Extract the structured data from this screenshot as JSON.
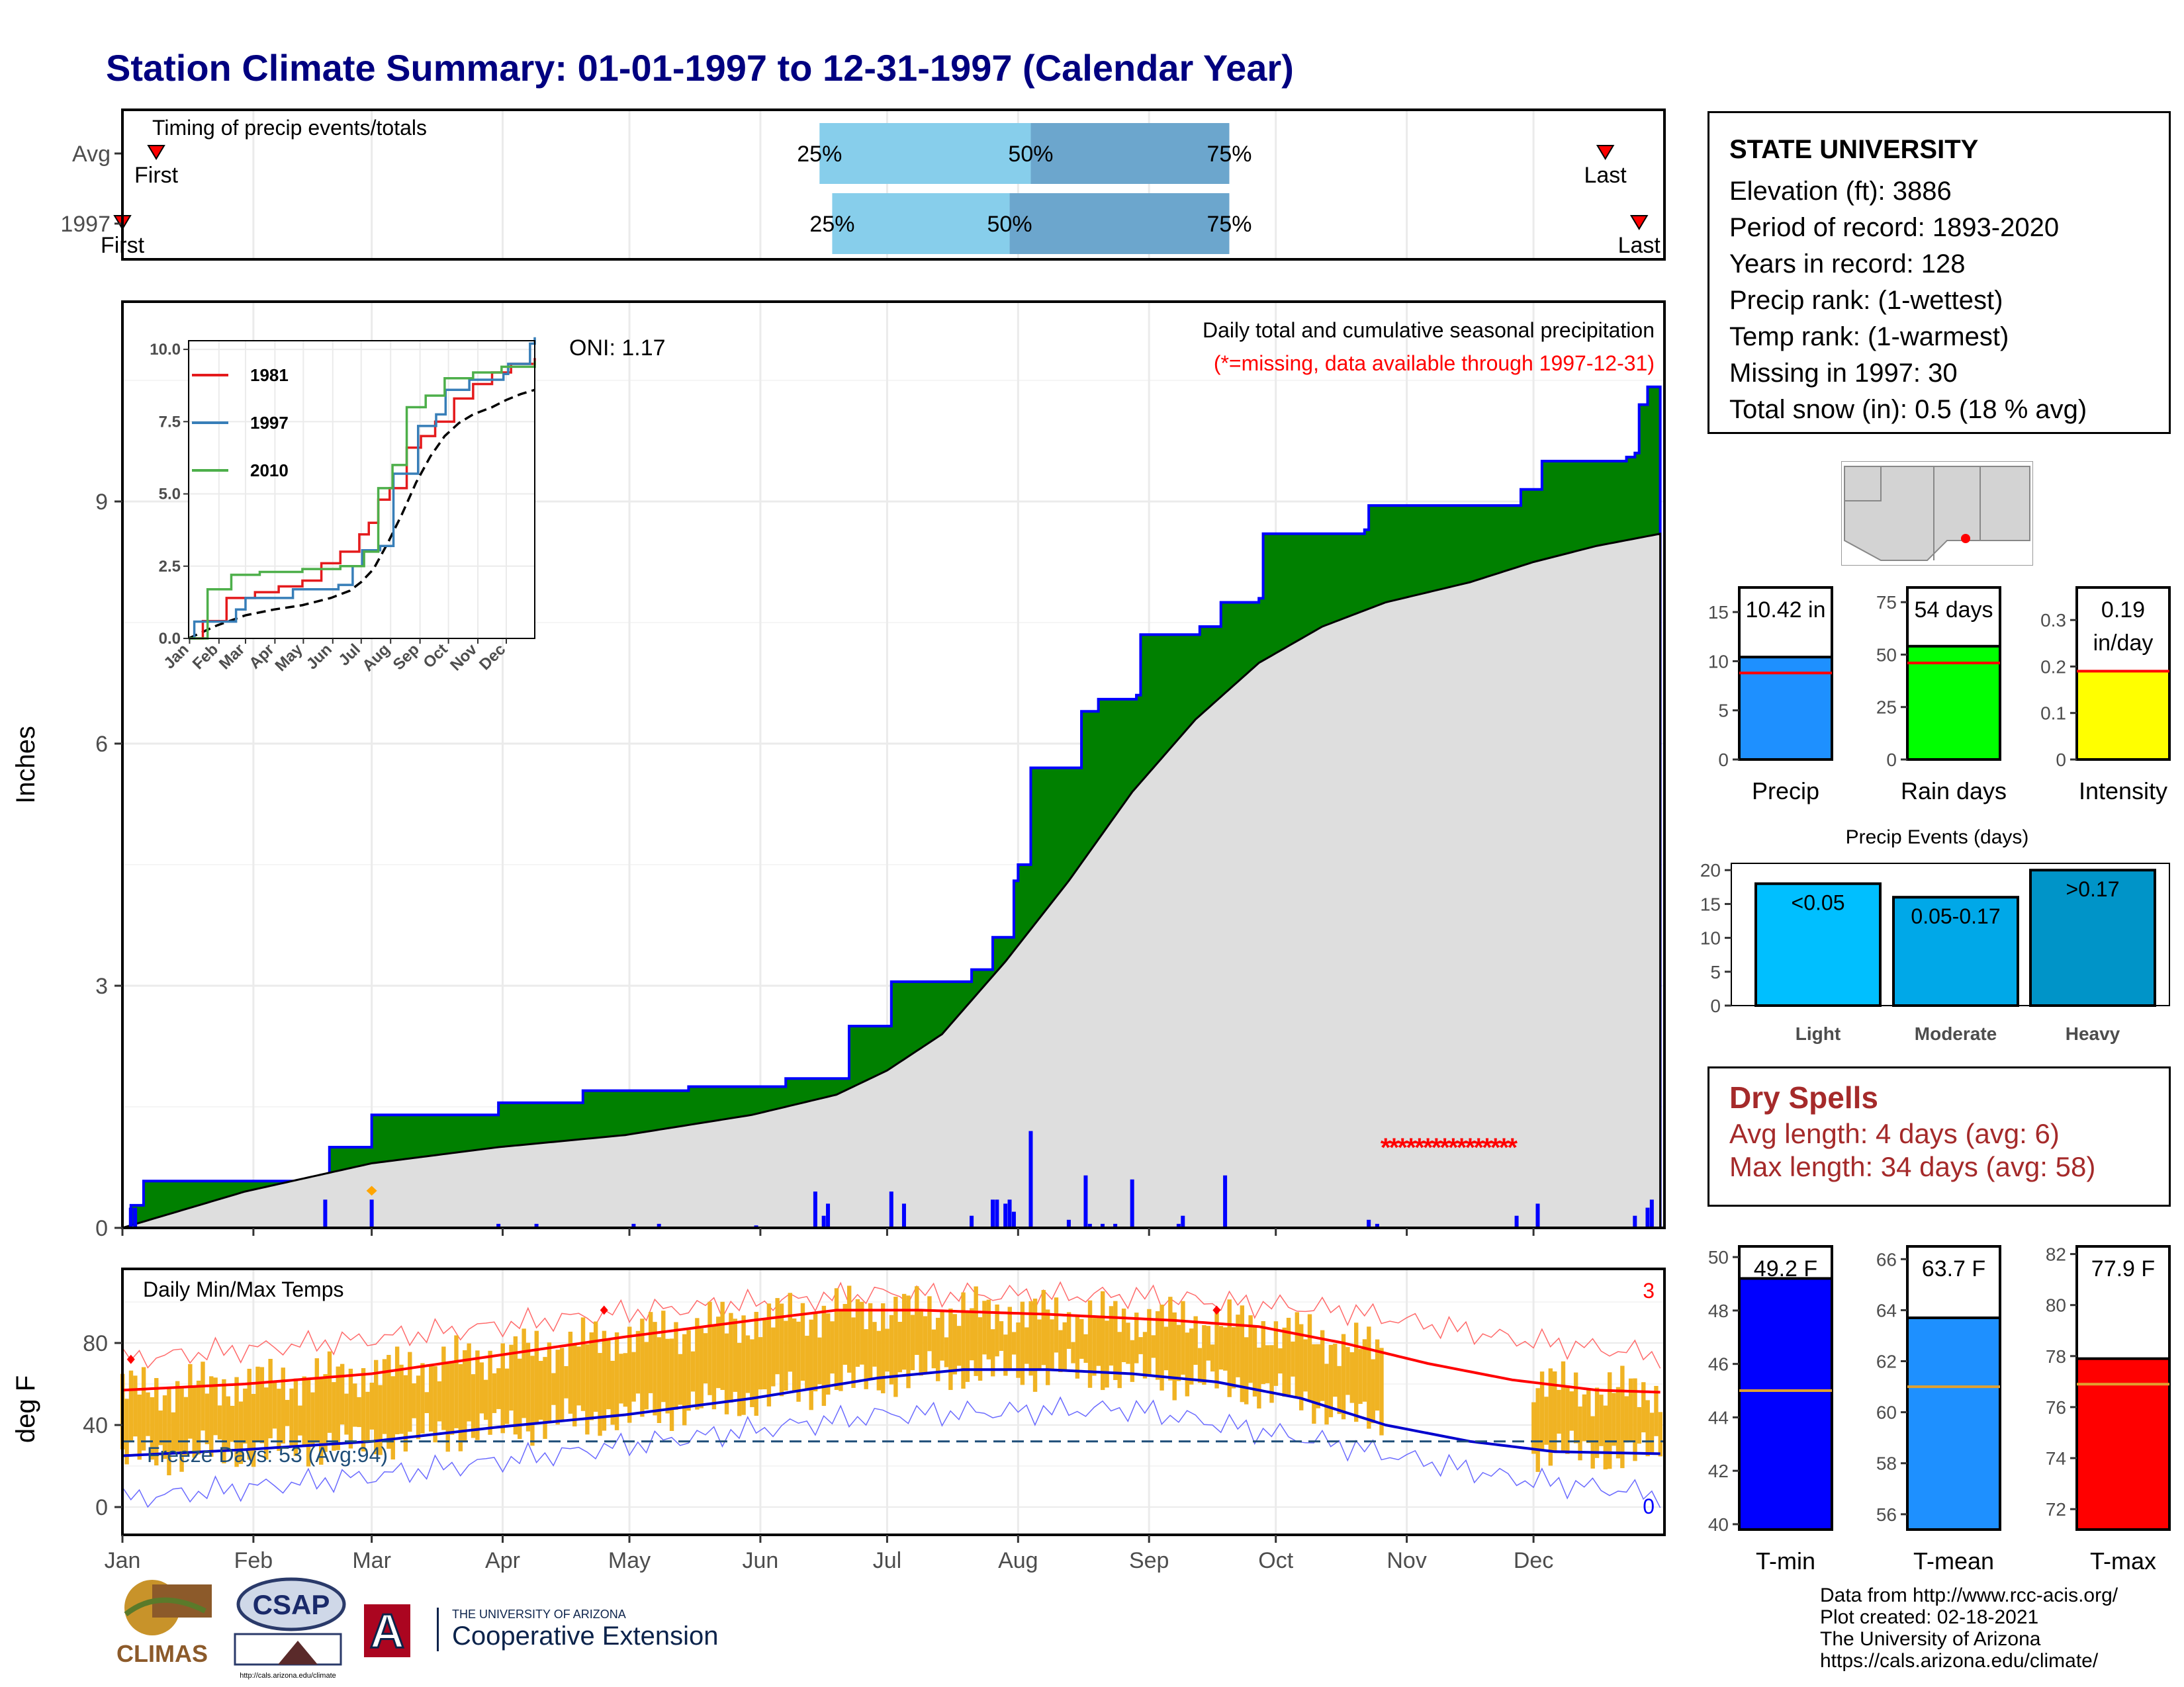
{
  "title": "Station Climate Summary: 01-01-1997 to 12-31-1997 (Calendar Year)",
  "colors": {
    "title": "#000080",
    "precip_green": "#008000",
    "precip_blue": "#0000ff",
    "grey_fill": "#dedede",
    "temp_bar": "#f0b323",
    "tmax_line": "#ff0000",
    "tmin_line": "#0000cd",
    "dry": "#a52a2a",
    "light": "#00bfff",
    "moderate": "#00a8e8",
    "heavy": "#0094c8"
  },
  "station_info": {
    "name": "STATE UNIVERSITY",
    "lines": [
      "Elevation (ft): 3886",
      "Period of record: 1893-2020",
      "Years in record: 128",
      "Precip rank:  (1-wettest)",
      "Temp rank:  (1-warmest)",
      "Missing in 1997: 30",
      "Total snow (in): 0.5 (18 % avg)"
    ]
  },
  "dry_spells": {
    "title": "Dry Spells",
    "avg": "Avg length: 4 days (avg: 6)",
    "max": "Max length: 34 days (avg: 58)"
  },
  "footer": [
    "Data from http://www.rcc-acis.org/",
    "Plot created: 02-18-2021",
    "The University of Arizona",
    "https://cals.arizona.edu/climate/"
  ],
  "logos": {
    "climas": "CLIMAS",
    "csap": "CSAP",
    "csap_url": "http://cals.arizona.edu/climate",
    "ua_line1": "THE UNIVERSITY OF ARIZONA",
    "ua_line2": "Cooperative Extension",
    "ua_letter": "A"
  },
  "chart_data": [
    {
      "name": "timing",
      "type": "bar",
      "title": "Timing of precip events/totals",
      "rows": [
        {
          "label": "Avg",
          "first_day": 9,
          "q25_day": 166,
          "q50_day": 216,
          "q75_day": 263,
          "last_day": 352,
          "first_label": "First",
          "last_label": "Last"
        },
        {
          "label": "1997",
          "first_day": 1,
          "q25_day": 169,
          "q50_day": 211,
          "q75_day": 263,
          "last_day": 360,
          "first_label": "First",
          "last_label": "Last"
        }
      ],
      "pct_labels": [
        "25%",
        "50%",
        "75%"
      ]
    },
    {
      "name": "precip",
      "type": "area",
      "title": "Daily total and cumulative seasonal precipitation",
      "subtitle": "(*=missing, data available through 1997-12-31)",
      "oni": "ONI: 1.17",
      "ylabel": "Inches",
      "ylim": [
        0,
        11.5
      ],
      "yticks": [
        0,
        3,
        6,
        9
      ],
      "xticks": [
        "Jan",
        "Feb",
        "Mar",
        "Apr",
        "May",
        "Jun",
        "Jul",
        "Aug",
        "Sep",
        "Oct",
        "Nov",
        "Dec"
      ],
      "cumulative_1997": [
        [
          1,
          0.0
        ],
        [
          3,
          0.28
        ],
        [
          6,
          0.58
        ],
        [
          45,
          0.6
        ],
        [
          50,
          1.0
        ],
        [
          60,
          1.4
        ],
        [
          85,
          1.4
        ],
        [
          90,
          1.55
        ],
        [
          110,
          1.7
        ],
        [
          135,
          1.75
        ],
        [
          158,
          1.85
        ],
        [
          173,
          2.5
        ],
        [
          183,
          3.05
        ],
        [
          201,
          3.05
        ],
        [
          202,
          3.2
        ],
        [
          207,
          3.6
        ],
        [
          212,
          4.3
        ],
        [
          213,
          4.5
        ],
        [
          216,
          5.7
        ],
        [
          228,
          6.4
        ],
        [
          232,
          6.55
        ],
        [
          241,
          6.6
        ],
        [
          242,
          7.35
        ],
        [
          256,
          7.45
        ],
        [
          261,
          7.75
        ],
        [
          270,
          7.8
        ],
        [
          271,
          8.6
        ],
        [
          295,
          8.65
        ],
        [
          292,
          8.55
        ],
        [
          296,
          8.95
        ],
        [
          330,
          8.95
        ],
        [
          332,
          9.15
        ],
        [
          337,
          9.5
        ],
        [
          357,
          9.55
        ],
        [
          359,
          9.6
        ],
        [
          360,
          10.2
        ],
        [
          362,
          10.42
        ],
        [
          365,
          10.42
        ]
      ],
      "normal_cumulative": [
        [
          1,
          0.0
        ],
        [
          30,
          0.45
        ],
        [
          60,
          0.8
        ],
        [
          90,
          1.0
        ],
        [
          120,
          1.15
        ],
        [
          150,
          1.4
        ],
        [
          170,
          1.65
        ],
        [
          182,
          1.95
        ],
        [
          195,
          2.4
        ],
        [
          210,
          3.3
        ],
        [
          225,
          4.3
        ],
        [
          240,
          5.4
        ],
        [
          255,
          6.3
        ],
        [
          270,
          7.0
        ],
        [
          285,
          7.45
        ],
        [
          300,
          7.75
        ],
        [
          320,
          8.0
        ],
        [
          335,
          8.25
        ],
        [
          350,
          8.45
        ],
        [
          365,
          8.6
        ]
      ],
      "daily": [
        [
          3,
          0.25
        ],
        [
          4,
          0.25
        ],
        [
          49,
          0.35
        ],
        [
          60,
          0.35
        ],
        [
          90,
          0.05
        ],
        [
          99,
          0.05
        ],
        [
          122,
          0.05
        ],
        [
          128,
          0.05
        ],
        [
          151,
          0.03
        ],
        [
          165,
          0.45
        ],
        [
          167,
          0.15
        ],
        [
          168,
          0.3
        ],
        [
          183,
          0.45
        ],
        [
          186,
          0.3
        ],
        [
          202,
          0.15
        ],
        [
          207,
          0.35
        ],
        [
          208,
          0.35
        ],
        [
          210,
          0.3
        ],
        [
          211,
          0.35
        ],
        [
          212,
          0.2
        ],
        [
          216,
          1.2
        ],
        [
          225,
          0.1
        ],
        [
          229,
          0.65
        ],
        [
          230,
          0.05
        ],
        [
          233,
          0.05
        ],
        [
          236,
          0.05
        ],
        [
          240,
          0.6
        ],
        [
          251,
          0.05
        ],
        [
          252,
          0.15
        ],
        [
          262,
          0.65
        ],
        [
          296,
          0.1
        ],
        [
          298,
          0.05
        ],
        [
          331,
          0.15
        ],
        [
          336,
          0.3
        ],
        [
          359,
          0.15
        ],
        [
          362,
          0.25
        ],
        [
          363,
          0.35
        ]
      ],
      "missing_days": [
        300,
        302,
        304,
        306,
        308,
        310,
        312,
        314,
        316,
        318,
        320,
        322,
        324,
        326,
        328,
        330
      ],
      "missing_value": 1.0,
      "snow_marker_day": 60
    },
    {
      "name": "inset",
      "type": "line",
      "xticks": [
        "Jan",
        "Feb",
        "Mar",
        "Apr",
        "May",
        "Jun",
        "Jul",
        "Aug",
        "Sep",
        "Oct",
        "Nov",
        "Dec"
      ],
      "yticks": [
        "0.0",
        "2.5",
        "5.0",
        "7.5",
        "10.0"
      ],
      "ylim": [
        0,
        10.3
      ],
      "series": [
        {
          "name": "1981",
          "color": "#e41a1c",
          "values": [
            [
              0,
              0
            ],
            [
              15,
              0.6
            ],
            [
              40,
              1.4
            ],
            [
              70,
              1.6
            ],
            [
              95,
              1.8
            ],
            [
              120,
              2.0
            ],
            [
              140,
              2.6
            ],
            [
              160,
              3.0
            ],
            [
              180,
              3.6
            ],
            [
              190,
              4.0
            ],
            [
              200,
              4.8
            ],
            [
              212,
              5.2
            ],
            [
              230,
              6.6
            ],
            [
              245,
              7.0
            ],
            [
              260,
              7.5
            ],
            [
              280,
              8.3
            ],
            [
              300,
              8.8
            ],
            [
              320,
              9.2
            ],
            [
              340,
              9.5
            ],
            [
              365,
              9.7
            ]
          ]
        },
        {
          "name": "1997",
          "color": "#377eb8",
          "values": [
            [
              0,
              0
            ],
            [
              6,
              0.58
            ],
            [
              50,
              1.0
            ],
            [
              60,
              1.4
            ],
            [
              110,
              1.7
            ],
            [
              158,
              1.85
            ],
            [
              173,
              2.5
            ],
            [
              183,
              3.05
            ],
            [
              202,
              3.2
            ],
            [
              216,
              5.7
            ],
            [
              242,
              7.35
            ],
            [
              261,
              7.75
            ],
            [
              271,
              8.6
            ],
            [
              296,
              8.95
            ],
            [
              332,
              9.15
            ],
            [
              337,
              9.5
            ],
            [
              360,
              10.2
            ],
            [
              365,
              10.42
            ]
          ]
        },
        {
          "name": "2010",
          "color": "#4daf4a",
          "values": [
            [
              0,
              0
            ],
            [
              20,
              1.7
            ],
            [
              45,
              2.2
            ],
            [
              75,
              2.3
            ],
            [
              120,
              2.4
            ],
            [
              160,
              2.5
            ],
            [
              185,
              3.0
            ],
            [
              200,
              5.2
            ],
            [
              215,
              6.0
            ],
            [
              230,
              8.0
            ],
            [
              250,
              8.4
            ],
            [
              270,
              9.0
            ],
            [
              300,
              9.2
            ],
            [
              330,
              9.4
            ],
            [
              365,
              9.6
            ]
          ]
        }
      ],
      "normal": [
        [
          0,
          0
        ],
        [
          30,
          0.45
        ],
        [
          60,
          0.8
        ],
        [
          90,
          1.0
        ],
        [
          120,
          1.15
        ],
        [
          150,
          1.4
        ],
        [
          170,
          1.65
        ],
        [
          182,
          1.95
        ],
        [
          195,
          2.4
        ],
        [
          210,
          3.3
        ],
        [
          225,
          4.3
        ],
        [
          240,
          5.4
        ],
        [
          255,
          6.3
        ],
        [
          270,
          7.0
        ],
        [
          285,
          7.45
        ],
        [
          300,
          7.75
        ],
        [
          320,
          8.0
        ],
        [
          335,
          8.25
        ],
        [
          350,
          8.45
        ],
        [
          365,
          8.6
        ]
      ]
    },
    {
      "name": "temps",
      "type": "bar",
      "title": "Daily Min/Max Temps",
      "ylabel": "deg F",
      "ylim": [
        -10,
        110
      ],
      "yticks": [
        0,
        40,
        80
      ],
      "record_count_label": "3",
      "zero_count_label": "0",
      "freeze_label": "Freeze Days: 53 (Avg:94)",
      "freeze_line": 32,
      "normal_tmax": [
        [
          1,
          57
        ],
        [
          30,
          60
        ],
        [
          60,
          65
        ],
        [
          90,
          74
        ],
        [
          120,
          83
        ],
        [
          150,
          91
        ],
        [
          170,
          96
        ],
        [
          190,
          96
        ],
        [
          220,
          94
        ],
        [
          250,
          91
        ],
        [
          270,
          88
        ],
        [
          290,
          80
        ],
        [
          310,
          70
        ],
        [
          330,
          62
        ],
        [
          350,
          57
        ],
        [
          365,
          56
        ]
      ],
      "normal_tmin": [
        [
          1,
          25
        ],
        [
          30,
          28
        ],
        [
          60,
          32
        ],
        [
          90,
          39
        ],
        [
          120,
          45
        ],
        [
          150,
          53
        ],
        [
          180,
          63
        ],
        [
          200,
          67
        ],
        [
          220,
          67
        ],
        [
          240,
          65
        ],
        [
          260,
          61
        ],
        [
          280,
          53
        ],
        [
          300,
          40
        ],
        [
          320,
          32
        ],
        [
          340,
          27
        ],
        [
          365,
          26
        ]
      ],
      "record_high": [
        [
          1,
          72
        ],
        [
          60,
          82
        ],
        [
          120,
          95
        ],
        [
          180,
          104
        ],
        [
          240,
          103
        ],
        [
          290,
          96
        ],
        [
          330,
          82
        ],
        [
          365,
          74
        ]
      ],
      "record_low": [
        [
          1,
          4
        ],
        [
          60,
          15
        ],
        [
          120,
          30
        ],
        [
          180,
          45
        ],
        [
          240,
          48
        ],
        [
          290,
          30
        ],
        [
          330,
          14
        ],
        [
          365,
          6
        ]
      ],
      "bar_gap": [
        300,
        334
      ]
    },
    {
      "name": "precip_totals",
      "type": "bar",
      "categories": [
        "Precip",
        "Rain days",
        "Intensity"
      ],
      "values": [
        10.42,
        54,
        0.19
      ],
      "value_labels": [
        "10.42 in",
        "54 days",
        "0.19\nin/day"
      ],
      "averages": [
        8.8,
        46,
        0.19
      ],
      "ylims": [
        [
          0,
          17.5
        ],
        [
          0,
          82
        ],
        [
          0,
          0.37
        ]
      ],
      "yticks": [
        [
          0,
          5,
          10,
          15
        ],
        [
          0,
          25,
          50,
          75
        ],
        [
          0.0,
          0.1,
          0.2,
          0.3
        ]
      ],
      "colors": [
        "#1e90ff",
        "#00ff00",
        "#ffff00"
      ]
    },
    {
      "name": "precip_events",
      "type": "bar",
      "title": "Precip Events (days)",
      "categories": [
        "Light",
        "Moderate",
        "Heavy"
      ],
      "values": [
        18,
        16,
        20
      ],
      "value_labels": [
        "<0.05",
        "0.05-0.17",
        ">0.17"
      ],
      "ylim": [
        0,
        21
      ],
      "yticks": [
        0,
        5,
        10,
        15,
        20
      ]
    },
    {
      "name": "temp_totals",
      "type": "bar",
      "categories": [
        "T-min",
        "T-mean",
        "T-max"
      ],
      "values": [
        49.2,
        63.7,
        77.9
      ],
      "value_labels": [
        "49.2 F",
        "63.7 F",
        "77.9 F"
      ],
      "averages": [
        45.0,
        61.0,
        76.9
      ],
      "ylims": [
        [
          39.8,
          50.4
        ],
        [
          55.4,
          66.5
        ],
        [
          71.2,
          82.3
        ]
      ],
      "yticks": [
        [
          40,
          42,
          44,
          46,
          48,
          50
        ],
        [
          56,
          58,
          60,
          62,
          64,
          66
        ],
        [
          72,
          74,
          76,
          78,
          80,
          82
        ]
      ],
      "colors": [
        "#0000ff",
        "#1e90ff",
        "#ff0000"
      ]
    }
  ]
}
